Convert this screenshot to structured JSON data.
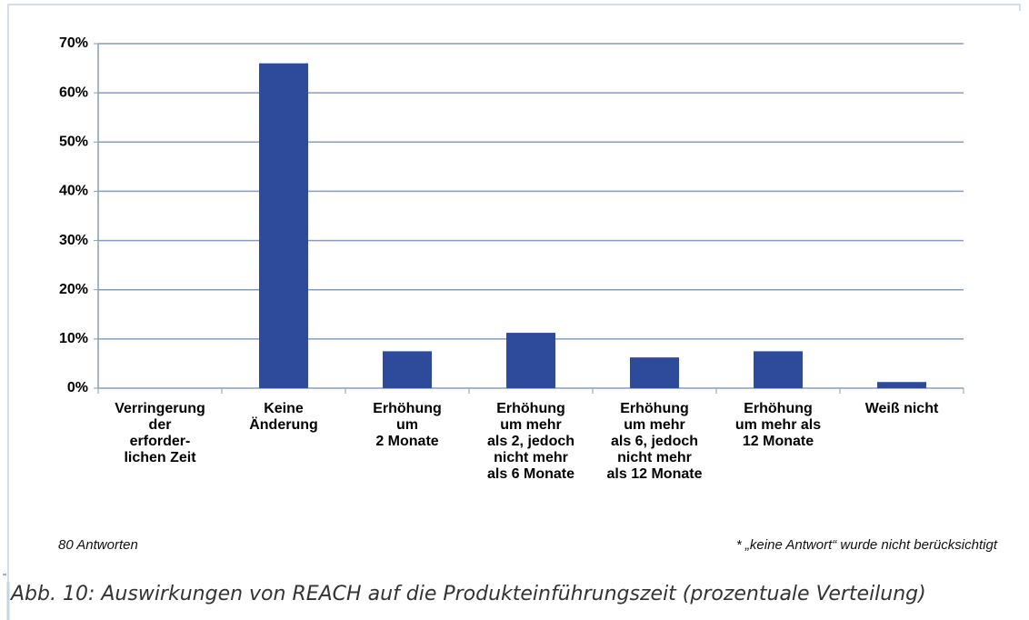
{
  "chart_data": {
    "type": "bar",
    "categories": [
      "Verringerung\nder\nerforder-\nlichen Zeit",
      "Keine\nÄnderung",
      "Erhöhung\num\n2 Monate",
      "Erhöhung\num mehr\nals 2, jedoch\nnicht mehr\nals 6 Monate",
      "Erhöhung\num mehr\nals 6, jedoch\nnicht mehr\nals 12 Monate",
      "Erhöhung\num mehr als\n12 Monate",
      "Weiß nicht"
    ],
    "values": [
      0,
      66,
      7.5,
      11.25,
      6.25,
      7.5,
      1.25
    ],
    "color": "#2e4a9b",
    "ylim": [
      0,
      70
    ],
    "yticks": [
      {
        "value": 0,
        "label": "0%"
      },
      {
        "value": 10,
        "label": "10%"
      },
      {
        "value": 20,
        "label": "20%"
      },
      {
        "value": 30,
        "label": "30%"
      },
      {
        "value": 40,
        "label": "40%"
      },
      {
        "value": 50,
        "label": "50%"
      },
      {
        "value": 60,
        "label": "60%"
      },
      {
        "value": 70,
        "label": "70%"
      }
    ],
    "grid": true,
    "note_left": "80 Antworten",
    "note_right": "* „keine Antwort“ wurde nicht berücksichtigt",
    "caption": "Abb. 10: Auswirkungen von REACH auf die Produkteinführungszeit (prozentuale Verteilung)"
  }
}
